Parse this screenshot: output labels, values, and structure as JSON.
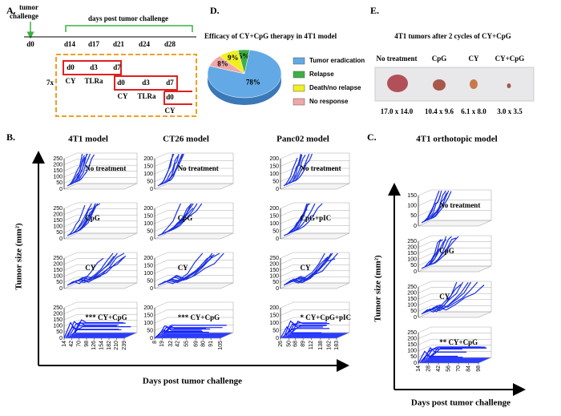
{
  "panel_a": {
    "letter": "A.",
    "challenge": [
      "tumor",
      "challenge"
    ],
    "timeline_title": "days post tumor challenge",
    "days": [
      "d0",
      "d14",
      "d17",
      "d21",
      "d24",
      "d28"
    ],
    "repeat": "7x",
    "cycles": [
      {
        "days": [
          "d0",
          "d3",
          "d7"
        ],
        "agents": [
          "CY",
          "TLRa"
        ]
      },
      {
        "days": [
          "d0",
          "d3",
          "d7"
        ],
        "agents": [
          "CY",
          "TLRa"
        ]
      },
      {
        "days": [
          "d0"
        ],
        "agents": [
          "CY"
        ]
      }
    ]
  },
  "chart_data": {
    "type": "pie",
    "letter": "D.",
    "title": "Efficacy of CY+CpG therapy  in 4T1 model",
    "categories": [
      "Tumor eradication",
      "Relapse",
      "Death/no relapse",
      "No response"
    ],
    "values": [
      78,
      5,
      9,
      8
    ],
    "value_labels": [
      "78%",
      "5%",
      "9%",
      "8%"
    ],
    "colors": [
      "#63a9e6",
      "#3cb043",
      "#f0f020",
      "#f2a7a7"
    ]
  },
  "panel_e": {
    "letter": "E.",
    "title": "4T1  tumors  after 2 cycles of  CY+CpG",
    "groups": [
      {
        "name": "No treatment",
        "size": "17.0 x 14.0"
      },
      {
        "name": "CpG",
        "size": "10.4 x 9.6"
      },
      {
        "name": "CY",
        "size": "6.1 x 8.0"
      },
      {
        "name": "CY+CpG",
        "size": "3.0 x 3.5"
      }
    ]
  },
  "panel_b": {
    "letter": "B.",
    "y_label": "Tumor  size  (mm²)",
    "x_label": "Days post tumor challenge",
    "models": [
      {
        "title": "4T1 model",
        "plots": [
          {
            "label": "No treatment",
            "ylim": [
              0,
              250
            ],
            "yticks": [
              0,
              50,
              100,
              150,
              200,
              250
            ]
          },
          {
            "label": "CpG",
            "ylim": [
              0,
              250
            ],
            "yticks": [
              0,
              50,
              100,
              150,
              200,
              250
            ]
          },
          {
            "label": "CY",
            "ylim": [
              0,
              250
            ],
            "yticks": [
              0,
              50,
              100,
              150,
              200,
              250
            ]
          },
          {
            "label": "*** CY+CpG",
            "ylim": [
              0,
              250
            ],
            "yticks": [
              0,
              50,
              100,
              150,
              200,
              250
            ],
            "xlim": [
              14,
              239
            ],
            "xticks": [
              14,
              42,
              70,
              98,
              126,
              154,
              182,
              210,
              239
            ]
          }
        ]
      },
      {
        "title": "CT26 model",
        "plots": [
          {
            "label": "No treatment",
            "ylim": [
              0,
              200
            ],
            "yticks": [
              0,
              50,
              100,
              150,
              200
            ]
          },
          {
            "label": "CpG",
            "ylim": [
              0,
              200
            ],
            "yticks": [
              0,
              50,
              100,
              150,
              200
            ]
          },
          {
            "label": "CY",
            "ylim": [
              0,
              200
            ],
            "yticks": [
              0,
              50,
              100,
              150,
              200
            ]
          },
          {
            "label": "*** CY+CpG",
            "ylim": [
              0,
              200
            ],
            "yticks": [
              0,
              50,
              100,
              150,
              200
            ],
            "xlim": [
              8,
              105
            ],
            "xticks": [
              8,
              19,
              32,
              42,
              55,
              69,
              80,
              91,
              105
            ]
          }
        ]
      },
      {
        "title": "Panc02  model",
        "plots": [
          {
            "label": "No treatment",
            "ylim": [
              0,
              200
            ],
            "yticks": [
              0,
              50,
              100,
              150,
              200
            ]
          },
          {
            "label": "CpG+pIC",
            "ylim": [
              0,
              200
            ],
            "yticks": [
              0,
              50,
              100,
              150,
              200
            ]
          },
          {
            "label": "CY",
            "ylim": [
              0,
              250
            ],
            "yticks": [
              0,
              50,
              100,
              150,
              200,
              250
            ]
          },
          {
            "label": "*  CY+CpG+pIC",
            "ylim": [
              0,
              200
            ],
            "yticks": [
              0,
              50,
              100,
              150,
              200
            ],
            "xlim": [
              26,
              183
            ],
            "xticks": [
              26,
              50,
              68,
              89,
              112,
              138,
              162,
              183
            ]
          }
        ]
      }
    ]
  },
  "panel_c": {
    "letter": "C.",
    "title": "4T1 orthotopic  model",
    "y_label": "Tumor  size  (mm²)",
    "x_label": "Days post tumor  challenge",
    "plots": [
      {
        "label": "No treatment",
        "ylim": [
          0,
          150
        ],
        "yticks": [
          0,
          50,
          100,
          150
        ]
      },
      {
        "label": "CpG",
        "ylim": [
          0,
          250
        ],
        "yticks": [
          0,
          50,
          100,
          150,
          200,
          250
        ]
      },
      {
        "label": "CY",
        "ylim": [
          0,
          250
        ],
        "yticks": [
          0,
          50,
          100,
          150,
          200,
          250
        ]
      },
      {
        "label": "** CY+CpG",
        "ylim": [
          0,
          250
        ],
        "yticks": [
          0,
          50,
          100,
          150,
          200,
          250
        ],
        "xlim": [
          14,
          98
        ],
        "xticks": [
          14,
          28,
          42,
          56,
          70,
          84,
          98
        ]
      }
    ]
  }
}
